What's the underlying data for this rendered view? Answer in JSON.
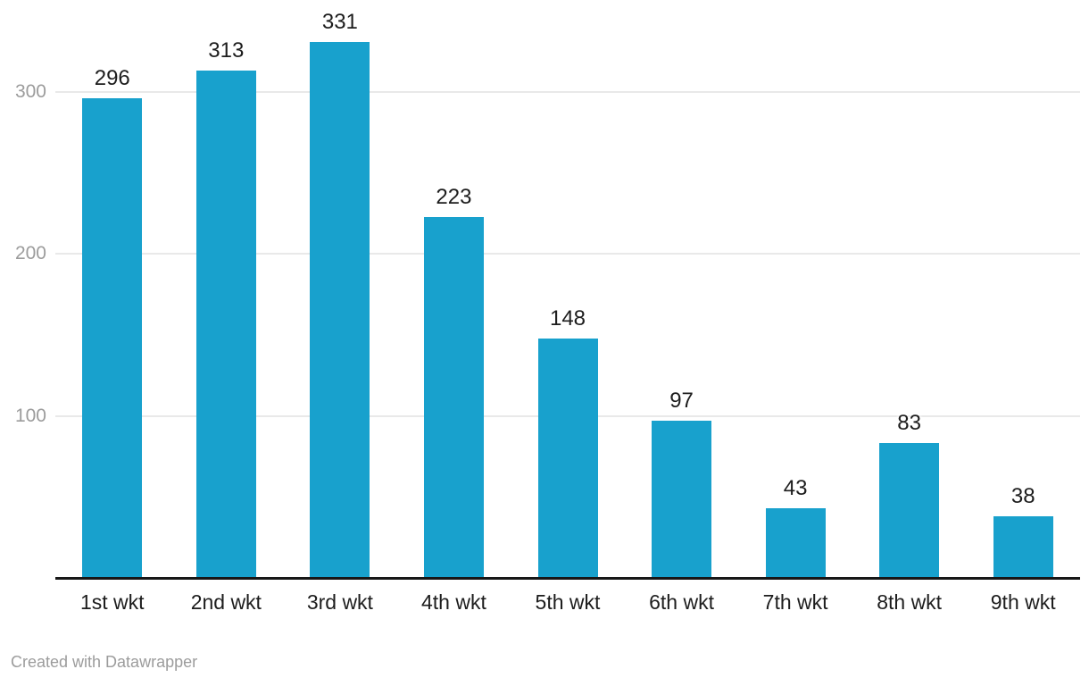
{
  "chart_data": {
    "type": "bar",
    "categories": [
      "1st wkt",
      "2nd wkt",
      "3rd wkt",
      "4th wkt",
      "5th wkt",
      "6th wkt",
      "7th wkt",
      "8th wkt",
      "9th wkt"
    ],
    "values": [
      296,
      313,
      331,
      223,
      148,
      97,
      43,
      83,
      38
    ],
    "title": "",
    "xlabel": "",
    "ylabel": "",
    "ylim": [
      0,
      355
    ],
    "yticks": [
      100,
      200,
      300
    ],
    "grid": "horizontal",
    "legend": "none",
    "value_labels_shown": true,
    "bar_color": "#18a1cd"
  },
  "colors": {
    "bar": "#18a1cd",
    "gridline": "#e9e9e9",
    "axis_line": "#171717",
    "value_label": "#1d1d1d",
    "category_label": "#1d1d1d",
    "tick_label": "#9c9c9c",
    "credit": "#9c9c9c",
    "background": "#ffffff"
  },
  "footer": {
    "credit": "Created with Datawrapper"
  }
}
